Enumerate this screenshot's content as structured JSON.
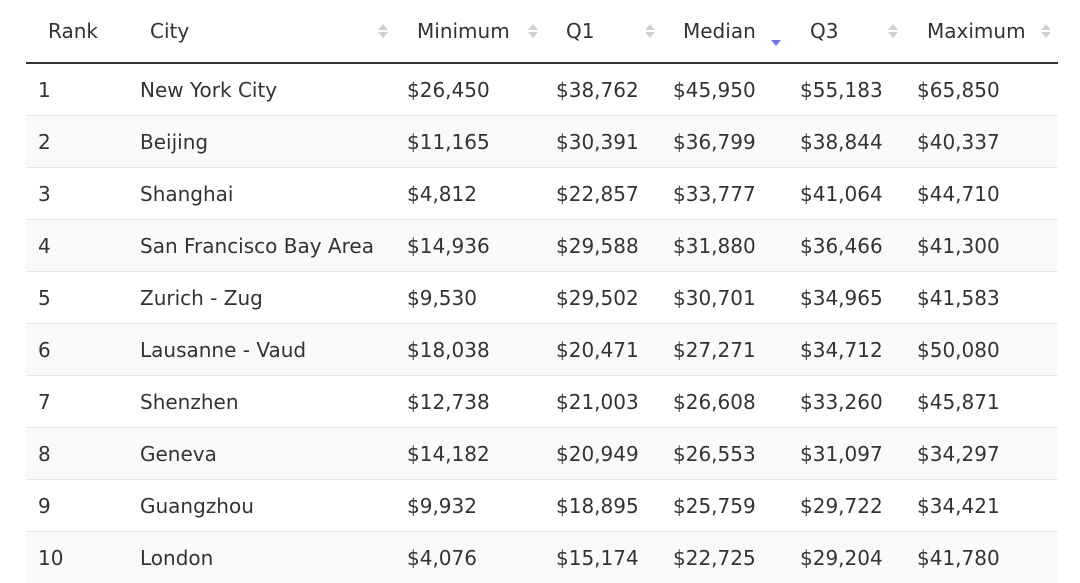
{
  "table": {
    "headers": {
      "rank": "Rank",
      "city": "City",
      "minimum": "Minimum",
      "q1": "Q1",
      "median": "Median",
      "q3": "Q3",
      "maximum": "Maximum"
    },
    "sort": {
      "column": "median",
      "direction": "descending",
      "active_color": "#6f6fd6",
      "inactive_color": "#cfcfd4"
    },
    "rows": [
      {
        "rank": "1",
        "city": "New York City",
        "minimum": "$26,450",
        "q1": "$38,762",
        "median": "$45,950",
        "q3": "$55,183",
        "maximum": "$65,850"
      },
      {
        "rank": "2",
        "city": "Beijing",
        "minimum": "$11,165",
        "q1": "$30,391",
        "median": "$36,799",
        "q3": "$38,844",
        "maximum": "$40,337"
      },
      {
        "rank": "3",
        "city": "Shanghai",
        "minimum": "$4,812",
        "q1": "$22,857",
        "median": "$33,777",
        "q3": "$41,064",
        "maximum": "$44,710"
      },
      {
        "rank": "4",
        "city": "San Francisco Bay Area",
        "minimum": "$14,936",
        "q1": "$29,588",
        "median": "$31,880",
        "q3": "$36,466",
        "maximum": "$41,300"
      },
      {
        "rank": "5",
        "city": "Zurich - Zug",
        "minimum": "$9,530",
        "q1": "$29,502",
        "median": "$30,701",
        "q3": "$34,965",
        "maximum": "$41,583"
      },
      {
        "rank": "6",
        "city": "Lausanne - Vaud",
        "minimum": "$18,038",
        "q1": "$20,471",
        "median": "$27,271",
        "q3": "$34,712",
        "maximum": "$50,080"
      },
      {
        "rank": "7",
        "city": "Shenzhen",
        "minimum": "$12,738",
        "q1": "$21,003",
        "median": "$26,608",
        "q3": "$33,260",
        "maximum": "$45,871"
      },
      {
        "rank": "8",
        "city": "Geneva",
        "minimum": "$14,182",
        "q1": "$20,949",
        "median": "$26,553",
        "q3": "$31,097",
        "maximum": "$34,297"
      },
      {
        "rank": "9",
        "city": "Guangzhou",
        "minimum": "$9,932",
        "q1": "$18,895",
        "median": "$25,759",
        "q3": "$29,722",
        "maximum": "$34,421"
      },
      {
        "rank": "10",
        "city": "London",
        "minimum": "$4,076",
        "q1": "$15,174",
        "median": "$22,725",
        "q3": "$29,204",
        "maximum": "$41,780"
      }
    ]
  }
}
